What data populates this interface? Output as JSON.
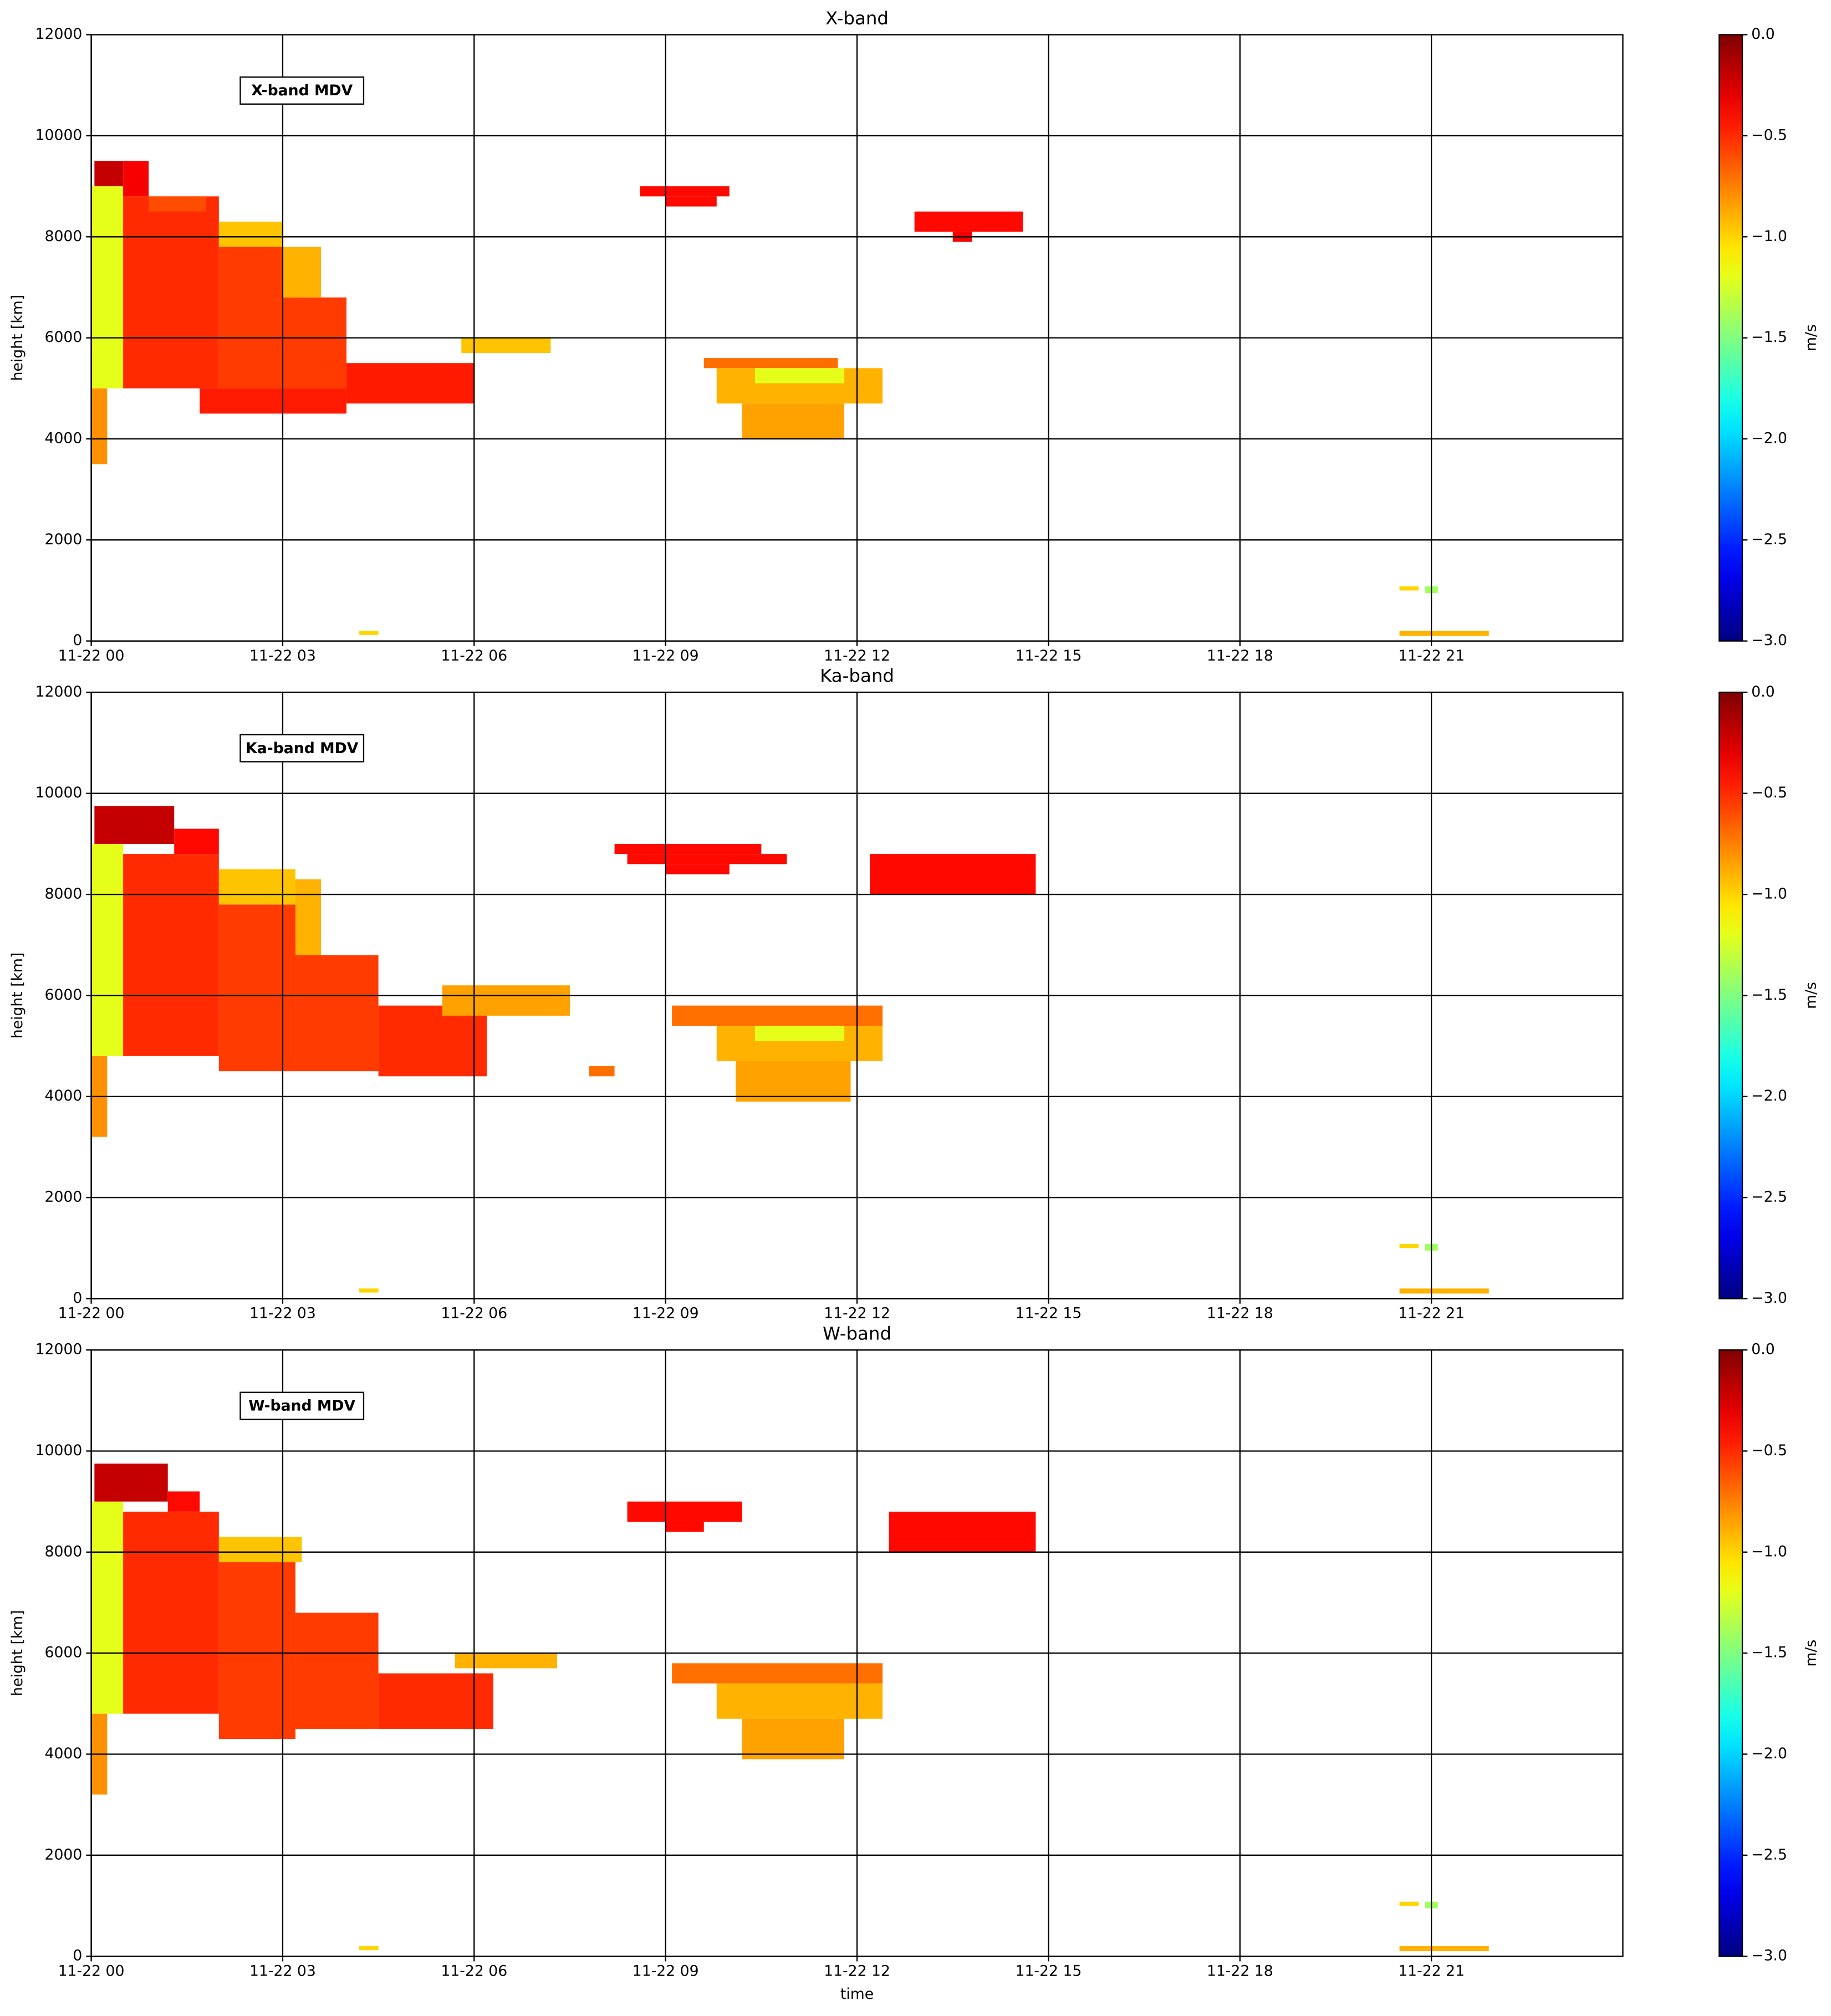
{
  "chart_data": [
    {
      "type": "heatmap",
      "title": "X-band",
      "annotation": "X-band MDV",
      "y_label": "height [km]",
      "colorbar_label": "m/s",
      "colormap": "jet",
      "grid": true,
      "xlim": [
        0,
        24
      ],
      "xticks": [
        {
          "value": 0,
          "label": "11-22 00"
        },
        {
          "value": 3,
          "label": "11-22 03"
        },
        {
          "value": 6,
          "label": "11-22 06"
        },
        {
          "value": 9,
          "label": "11-22 09"
        },
        {
          "value": 12,
          "label": "11-22 12"
        },
        {
          "value": 15,
          "label": "11-22 15"
        },
        {
          "value": 18,
          "label": "11-22 18"
        },
        {
          "value": 21,
          "label": "11-22 21"
        }
      ],
      "ylim": [
        0,
        12000
      ],
      "yticks": [
        0,
        2000,
        4000,
        6000,
        8000,
        10000,
        12000
      ],
      "clim": [
        -3,
        0
      ],
      "cticks": [
        {
          "value": -3,
          "label": "−3.0"
        },
        {
          "value": -2.5,
          "label": "−2.5"
        },
        {
          "value": -2,
          "label": "−2.0"
        },
        {
          "value": -1.5,
          "label": "−1.5"
        },
        {
          "value": -1,
          "label": "−1.0"
        },
        {
          "value": -0.5,
          "label": "−0.5"
        },
        {
          "value": 0,
          "label": "0.0"
        }
      ],
      "cells": [
        {
          "x": [
            0,
            0.25
          ],
          "y": [
            3500,
            5000
          ],
          "value": -0.8
        },
        {
          "x": [
            0,
            0.5
          ],
          "y": [
            5000,
            9000
          ],
          "value": -1.2
        },
        {
          "x": [
            0.05,
            0.5
          ],
          "y": [
            9000,
            9500
          ],
          "value": -0.2
        },
        {
          "x": [
            0.5,
            2.0
          ],
          "y": [
            5000,
            8800
          ],
          "value": -0.5
        },
        {
          "x": [
            0.5,
            0.9
          ],
          "y": [
            8800,
            9500
          ],
          "value": -0.35
        },
        {
          "x": [
            0.9,
            1.8
          ],
          "y": [
            8500,
            8800
          ],
          "value": -0.6
        },
        {
          "x": [
            2.0,
            3.0
          ],
          "y": [
            5000,
            7800
          ],
          "value": -0.55
        },
        {
          "x": [
            2.0,
            3.0
          ],
          "y": [
            7800,
            8300
          ],
          "value": -0.95
        },
        {
          "x": [
            3.0,
            4.0
          ],
          "y": [
            5000,
            6800
          ],
          "value": -0.55
        },
        {
          "x": [
            3.0,
            3.6
          ],
          "y": [
            6800,
            7800
          ],
          "value": -0.9
        },
        {
          "x": [
            4.0,
            6.0
          ],
          "y": [
            4700,
            5500
          ],
          "value": -0.45
        },
        {
          "x": [
            1.7,
            4.0
          ],
          "y": [
            4500,
            5000
          ],
          "value": -0.45
        },
        {
          "x": [
            5.8,
            7.2
          ],
          "y": [
            5700,
            6000
          ],
          "value": -0.95
        },
        {
          "x": [
            8.6,
            10.0
          ],
          "y": [
            8800,
            9000
          ],
          "value": -0.4
        },
        {
          "x": [
            9.0,
            9.8
          ],
          "y": [
            8600,
            8800
          ],
          "value": -0.4
        },
        {
          "x": [
            9.6,
            11.7
          ],
          "y": [
            5400,
            5600
          ],
          "value": -0.7
        },
        {
          "x": [
            9.8,
            12.4
          ],
          "y": [
            4700,
            5400
          ],
          "value": -0.9
        },
        {
          "x": [
            10.4,
            11.8
          ],
          "y": [
            5100,
            5400
          ],
          "value": -1.2
        },
        {
          "x": [
            10.2,
            11.8
          ],
          "y": [
            4000,
            4700
          ],
          "value": -0.85
        },
        {
          "x": [
            12.9,
            14.6
          ],
          "y": [
            8100,
            8500
          ],
          "value": -0.4
        },
        {
          "x": [
            13.5,
            13.8
          ],
          "y": [
            7900,
            8100
          ],
          "value": -0.35
        },
        {
          "x": [
            4.2,
            4.5
          ],
          "y": [
            120,
            200
          ],
          "value": -1.0
        },
        {
          "x": [
            20.5,
            20.8
          ],
          "y": [
            1000,
            1080
          ],
          "value": -1.0
        },
        {
          "x": [
            20.9,
            21.1
          ],
          "y": [
            950,
            1080
          ],
          "value": -1.4
        },
        {
          "x": [
            20.5,
            21.9
          ],
          "y": [
            100,
            200
          ],
          "value": -0.9
        }
      ]
    },
    {
      "type": "heatmap",
      "title": "Ka-band",
      "annotation": "Ka-band MDV",
      "y_label": "height [km]",
      "colorbar_label": "m/s",
      "colormap": "jet",
      "grid": true,
      "xlim": [
        0,
        24
      ],
      "xticks": [
        {
          "value": 0,
          "label": "11-22 00"
        },
        {
          "value": 3,
          "label": "11-22 03"
        },
        {
          "value": 6,
          "label": "11-22 06"
        },
        {
          "value": 9,
          "label": "11-22 09"
        },
        {
          "value": 12,
          "label": "11-22 12"
        },
        {
          "value": 15,
          "label": "11-22 15"
        },
        {
          "value": 18,
          "label": "11-22 18"
        },
        {
          "value": 21,
          "label": "11-22 21"
        }
      ],
      "ylim": [
        0,
        12000
      ],
      "yticks": [
        0,
        2000,
        4000,
        6000,
        8000,
        10000,
        12000
      ],
      "clim": [
        -3,
        0
      ],
      "cticks": [
        {
          "value": -3,
          "label": "−3.0"
        },
        {
          "value": -2.5,
          "label": "−2.5"
        },
        {
          "value": -2,
          "label": "−2.0"
        },
        {
          "value": -1.5,
          "label": "−1.5"
        },
        {
          "value": -1,
          "label": "−1.0"
        },
        {
          "value": -0.5,
          "label": "−0.5"
        },
        {
          "value": 0,
          "label": "0.0"
        }
      ],
      "cells": [
        {
          "x": [
            0,
            0.25
          ],
          "y": [
            3200,
            4800
          ],
          "value": -0.8
        },
        {
          "x": [
            0,
            0.5
          ],
          "y": [
            4800,
            9000
          ],
          "value": -1.2
        },
        {
          "x": [
            0.05,
            1.3
          ],
          "y": [
            9000,
            9750
          ],
          "value": -0.2
        },
        {
          "x": [
            0.5,
            2.0
          ],
          "y": [
            4800,
            8800
          ],
          "value": -0.5
        },
        {
          "x": [
            1.3,
            2.0
          ],
          "y": [
            8800,
            9300
          ],
          "value": -0.4
        },
        {
          "x": [
            2.0,
            3.2
          ],
          "y": [
            4500,
            7800
          ],
          "value": -0.55
        },
        {
          "x": [
            2.0,
            3.2
          ],
          "y": [
            7800,
            8500
          ],
          "value": -0.95
        },
        {
          "x": [
            3.2,
            4.5
          ],
          "y": [
            4500,
            6800
          ],
          "value": -0.55
        },
        {
          "x": [
            3.2,
            3.6
          ],
          "y": [
            6800,
            8300
          ],
          "value": -0.9
        },
        {
          "x": [
            4.5,
            6.2
          ],
          "y": [
            4400,
            5800
          ],
          "value": -0.5
        },
        {
          "x": [
            5.5,
            7.5
          ],
          "y": [
            5600,
            6200
          ],
          "value": -0.85
        },
        {
          "x": [
            7.8,
            8.2
          ],
          "y": [
            4400,
            4600
          ],
          "value": -0.7
        },
        {
          "x": [
            8.2,
            10.5
          ],
          "y": [
            8800,
            9000
          ],
          "value": -0.4
        },
        {
          "x": [
            8.4,
            10.9
          ],
          "y": [
            8600,
            8800
          ],
          "value": -0.4
        },
        {
          "x": [
            9.0,
            10.0
          ],
          "y": [
            8400,
            8600
          ],
          "value": -0.4
        },
        {
          "x": [
            9.1,
            12.4
          ],
          "y": [
            5400,
            5800
          ],
          "value": -0.7
        },
        {
          "x": [
            9.8,
            12.4
          ],
          "y": [
            4700,
            5400
          ],
          "value": -0.9
        },
        {
          "x": [
            10.4,
            11.8
          ],
          "y": [
            5100,
            5400
          ],
          "value": -1.2
        },
        {
          "x": [
            10.1,
            11.9
          ],
          "y": [
            3900,
            4700
          ],
          "value": -0.85
        },
        {
          "x": [
            12.2,
            14.8
          ],
          "y": [
            8000,
            8800
          ],
          "value": -0.4
        },
        {
          "x": [
            4.2,
            4.5
          ],
          "y": [
            120,
            200
          ],
          "value": -1.0
        },
        {
          "x": [
            20.5,
            20.8
          ],
          "y": [
            1000,
            1080
          ],
          "value": -1.0
        },
        {
          "x": [
            20.9,
            21.1
          ],
          "y": [
            950,
            1080
          ],
          "value": -1.4
        },
        {
          "x": [
            20.5,
            21.9
          ],
          "y": [
            100,
            200
          ],
          "value": -0.9
        }
      ]
    },
    {
      "type": "heatmap",
      "title": "W-band",
      "annotation": "W-band MDV",
      "x_label": "time",
      "y_label": "height [km]",
      "colorbar_label": "m/s",
      "colormap": "jet",
      "grid": true,
      "xlim": [
        0,
        24
      ],
      "xticks": [
        {
          "value": 0,
          "label": "11-22 00"
        },
        {
          "value": 3,
          "label": "11-22 03"
        },
        {
          "value": 6,
          "label": "11-22 06"
        },
        {
          "value": 9,
          "label": "11-22 09"
        },
        {
          "value": 12,
          "label": "11-22 12"
        },
        {
          "value": 15,
          "label": "11-22 15"
        },
        {
          "value": 18,
          "label": "11-22 18"
        },
        {
          "value": 21,
          "label": "11-22 21"
        }
      ],
      "ylim": [
        0,
        12000
      ],
      "yticks": [
        0,
        2000,
        4000,
        6000,
        8000,
        10000,
        12000
      ],
      "clim": [
        -3,
        0
      ],
      "cticks": [
        {
          "value": -3,
          "label": "−3.0"
        },
        {
          "value": -2.5,
          "label": "−2.5"
        },
        {
          "value": -2,
          "label": "−2.0"
        },
        {
          "value": -1.5,
          "label": "−1.5"
        },
        {
          "value": -1,
          "label": "−1.0"
        },
        {
          "value": -0.5,
          "label": "−0.5"
        },
        {
          "value": 0,
          "label": "0.0"
        }
      ],
      "cells": [
        {
          "x": [
            0,
            0.25
          ],
          "y": [
            3200,
            4800
          ],
          "value": -0.8
        },
        {
          "x": [
            0,
            0.5
          ],
          "y": [
            4800,
            9000
          ],
          "value": -1.2
        },
        {
          "x": [
            0.05,
            1.2
          ],
          "y": [
            9000,
            9750
          ],
          "value": -0.2
        },
        {
          "x": [
            0.5,
            2.0
          ],
          "y": [
            4800,
            8800
          ],
          "value": -0.5
        },
        {
          "x": [
            1.2,
            1.7
          ],
          "y": [
            8800,
            9200
          ],
          "value": -0.4
        },
        {
          "x": [
            2.0,
            3.2
          ],
          "y": [
            4300,
            7800
          ],
          "value": -0.55
        },
        {
          "x": [
            2.0,
            3.3
          ],
          "y": [
            7800,
            8300
          ],
          "value": -0.95
        },
        {
          "x": [
            3.2,
            4.5
          ],
          "y": [
            4500,
            6800
          ],
          "value": -0.55
        },
        {
          "x": [
            4.5,
            6.3
          ],
          "y": [
            4500,
            5600
          ],
          "value": -0.5
        },
        {
          "x": [
            5.7,
            7.3
          ],
          "y": [
            5700,
            6000
          ],
          "value": -0.9
        },
        {
          "x": [
            8.4,
            10.2
          ],
          "y": [
            8600,
            9000
          ],
          "value": -0.4
        },
        {
          "x": [
            9.0,
            9.6
          ],
          "y": [
            8400,
            8600
          ],
          "value": -0.4
        },
        {
          "x": [
            9.1,
            12.4
          ],
          "y": [
            5400,
            5800
          ],
          "value": -0.7
        },
        {
          "x": [
            9.8,
            12.4
          ],
          "y": [
            4700,
            5400
          ],
          "value": -0.9
        },
        {
          "x": [
            10.2,
            11.8
          ],
          "y": [
            3900,
            4700
          ],
          "value": -0.85
        },
        {
          "x": [
            12.5,
            14.8
          ],
          "y": [
            8000,
            8800
          ],
          "value": -0.4
        },
        {
          "x": [
            4.2,
            4.5
          ],
          "y": [
            120,
            200
          ],
          "value": -1.0
        },
        {
          "x": [
            20.5,
            20.8
          ],
          "y": [
            1000,
            1080
          ],
          "value": -1.0
        },
        {
          "x": [
            20.9,
            21.1
          ],
          "y": [
            950,
            1080
          ],
          "value": -1.4
        },
        {
          "x": [
            20.5,
            21.9
          ],
          "y": [
            100,
            200
          ],
          "value": -0.9
        }
      ]
    }
  ]
}
